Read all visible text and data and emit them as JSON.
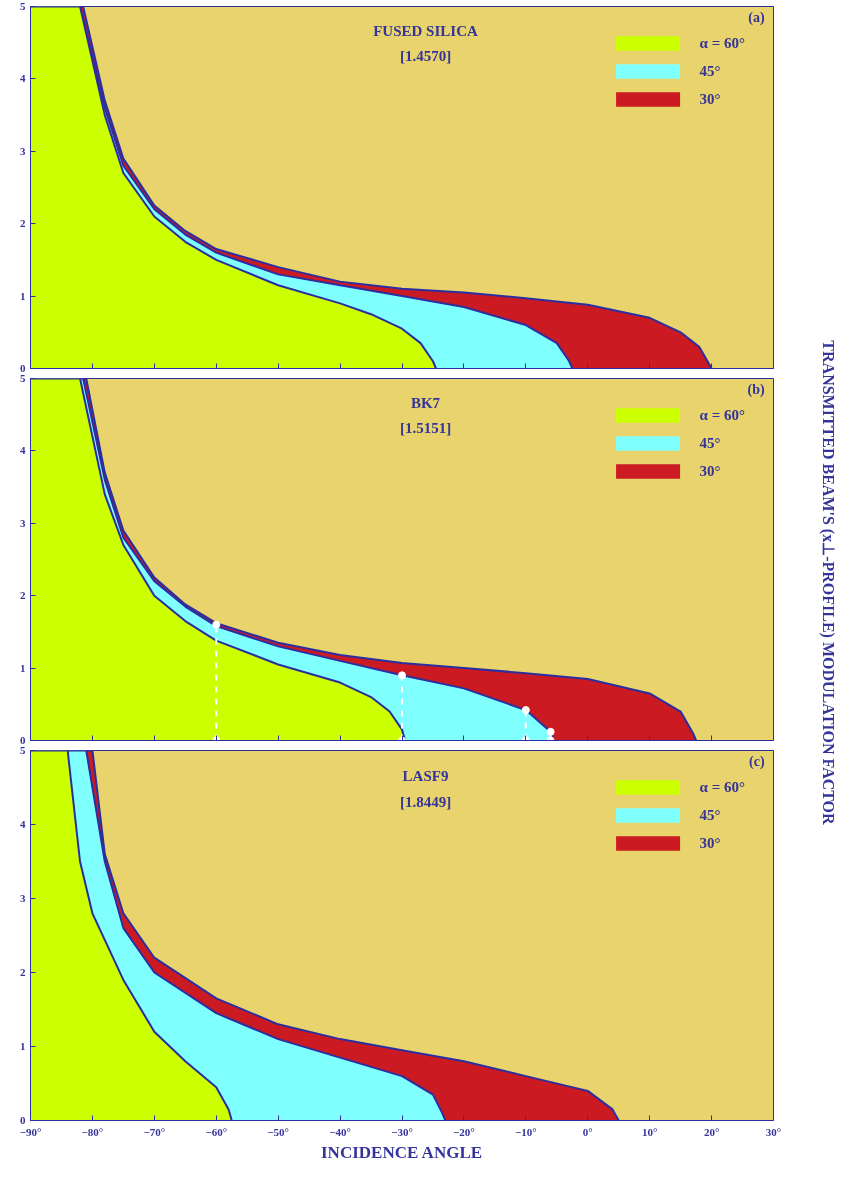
{
  "chart_data": [
    {
      "type": "area",
      "title": "FUSED SILICA",
      "subtitle": "[1.4570]",
      "annotations": [
        "(a)"
      ],
      "xlim": [
        -90,
        30
      ],
      "ylim": [
        0,
        5
      ],
      "yticks": [
        0,
        1,
        2,
        3,
        4,
        5
      ],
      "xticks": [
        -90,
        -80,
        -70,
        -60,
        -50,
        -40,
        -30,
        -20,
        -10,
        0,
        10,
        20,
        30
      ],
      "tick_labels": "y",
      "legend": "top right",
      "grid": false,
      "series": [
        {
          "name": "α = 60°",
          "color": "#ccff00",
          "x": [
            -90,
            -82,
            -78,
            -75,
            -70,
            -65,
            -60,
            -50,
            -40,
            -35,
            -30,
            -27,
            -25,
            -24.5
          ],
          "values": [
            5,
            5,
            3.5,
            2.7,
            2.1,
            1.75,
            1.5,
            1.15,
            0.9,
            0.75,
            0.55,
            0.35,
            0.1,
            0
          ]
        },
        {
          "name": "45°",
          "color": "#80ffff",
          "x": [
            -90,
            -82,
            -78,
            -75,
            -70,
            -65,
            -60,
            -50,
            -40,
            -30,
            -20,
            -10,
            -5,
            -3,
            -2.5
          ],
          "values": [
            5,
            5,
            3.6,
            2.8,
            2.2,
            1.85,
            1.6,
            1.3,
            1.15,
            1.0,
            0.85,
            0.6,
            0.35,
            0.1,
            0
          ]
        },
        {
          "name": "30°",
          "color": "#cc1a22",
          "x": [
            -90,
            -81.5,
            -78,
            -75,
            -70,
            -65,
            -60,
            -50,
            -40,
            -30,
            -20,
            -10,
            0,
            10,
            15,
            18,
            20
          ],
          "values": [
            5,
            5,
            3.7,
            2.9,
            2.25,
            1.9,
            1.65,
            1.4,
            1.2,
            1.1,
            1.05,
            0.97,
            0.88,
            0.7,
            0.5,
            0.3,
            0
          ]
        }
      ]
    },
    {
      "type": "area",
      "title": "BK7",
      "subtitle": "[1.5151]",
      "annotations": [
        "(b)"
      ],
      "ylabel": "TRANSMITTED BEAM'S (x⊥-PROFILE) MODULATION FACTOR",
      "xlim": [
        -90,
        30
      ],
      "ylim": [
        0,
        5
      ],
      "yticks": [
        0,
        1,
        2,
        3,
        4,
        5
      ],
      "xticks": [
        -90,
        -80,
        -70,
        -60,
        -50,
        -40,
        -30,
        -20,
        -10,
        0,
        10,
        20,
        30
      ],
      "tick_labels": "y",
      "legend": "top right",
      "grid": false,
      "series": [
        {
          "name": "α = 60°",
          "color": "#ccff00",
          "x": [
            -90,
            -82,
            -78,
            -75,
            -70,
            -65,
            -60,
            -50,
            -40,
            -35,
            -32,
            -30,
            -29.5
          ],
          "values": [
            5,
            5,
            3.4,
            2.7,
            2.0,
            1.65,
            1.38,
            1.05,
            0.8,
            0.6,
            0.4,
            0.15,
            0
          ]
        },
        {
          "name": "45°",
          "color": "#80ffff",
          "x": [
            -90,
            -81.5,
            -78,
            -75,
            -70,
            -65,
            -60,
            -50,
            -40,
            -30,
            -20,
            -10,
            -6,
            -5.5
          ],
          "values": [
            5,
            5,
            3.6,
            2.8,
            2.2,
            1.85,
            1.58,
            1.3,
            1.1,
            0.9,
            0.72,
            0.42,
            0.12,
            0
          ]
        },
        {
          "name": "30°",
          "color": "#cc1a22",
          "x": [
            -90,
            -81,
            -78,
            -75,
            -70,
            -65,
            -60,
            -50,
            -40,
            -30,
            -20,
            -10,
            0,
            10,
            15,
            17,
            17.5
          ],
          "values": [
            5,
            5,
            3.7,
            2.9,
            2.25,
            1.88,
            1.62,
            1.35,
            1.18,
            1.07,
            1.0,
            0.93,
            0.85,
            0.65,
            0.4,
            0.1,
            0
          ]
        },
        {
          "type": "lollipop",
          "color": "#ffffff",
          "line_style": "dashed",
          "x": [
            -60,
            -30,
            -10,
            -6
          ],
          "values": [
            1.6,
            0.9,
            0.42,
            0.12
          ]
        },
        {
          "type": "scatter",
          "color": "#ffffff",
          "x": [
            -60,
            -30,
            -10,
            -6
          ],
          "values": [
            0,
            0,
            0,
            0
          ]
        }
      ]
    },
    {
      "type": "area",
      "title": "LASF9",
      "subtitle": "[1.8449]",
      "annotations": [
        "(c)"
      ],
      "xlabel": "INCIDENCE ANGLE",
      "xlim": [
        -90,
        30
      ],
      "ylim": [
        0,
        5
      ],
      "yticks": [
        0,
        1,
        2,
        3,
        4,
        5
      ],
      "xticks": [
        {
          "value": -90,
          "label": "−90°"
        },
        {
          "value": -80,
          "label": "−80°"
        },
        {
          "value": -70,
          "label": "−70°"
        },
        {
          "value": -60,
          "label": "−60°"
        },
        {
          "value": -50,
          "label": "−50°"
        },
        {
          "value": -40,
          "label": "−40°"
        },
        {
          "value": -30,
          "label": "−30°"
        },
        {
          "value": -20,
          "label": "−20°"
        },
        {
          "value": -10,
          "label": "−10°"
        },
        {
          "value": 0,
          "label": "0°"
        },
        {
          "value": 10,
          "label": "10°"
        },
        {
          "value": 20,
          "label": "20°"
        },
        {
          "value": 30,
          "label": "30°"
        }
      ],
      "legend": "top right",
      "grid": false,
      "series": [
        {
          "name": "α = 60°",
          "color": "#ccff00",
          "x": [
            -90,
            -84,
            -82,
            -80,
            -75,
            -70,
            -65,
            -60,
            -58,
            -57.5
          ],
          "values": [
            5,
            5,
            3.5,
            2.8,
            1.9,
            1.2,
            0.8,
            0.45,
            0.15,
            0
          ]
        },
        {
          "name": "45°",
          "color": "#80ffff",
          "x": [
            -90,
            -81,
            -78,
            -75,
            -70,
            -60,
            -50,
            -40,
            -30,
            -25,
            -23.5,
            -23
          ],
          "values": [
            5,
            5,
            3.5,
            2.6,
            2.0,
            1.45,
            1.1,
            0.85,
            0.6,
            0.35,
            0.1,
            0
          ]
        },
        {
          "name": "30°",
          "color": "#cc1a22",
          "x": [
            -90,
            -80,
            -78,
            -75,
            -70,
            -60,
            -50,
            -40,
            -30,
            -20,
            -10,
            0,
            4,
            5
          ],
          "values": [
            5,
            5,
            3.6,
            2.8,
            2.2,
            1.65,
            1.3,
            1.1,
            0.95,
            0.8,
            0.6,
            0.4,
            0.15,
            0
          ]
        }
      ]
    }
  ]
}
